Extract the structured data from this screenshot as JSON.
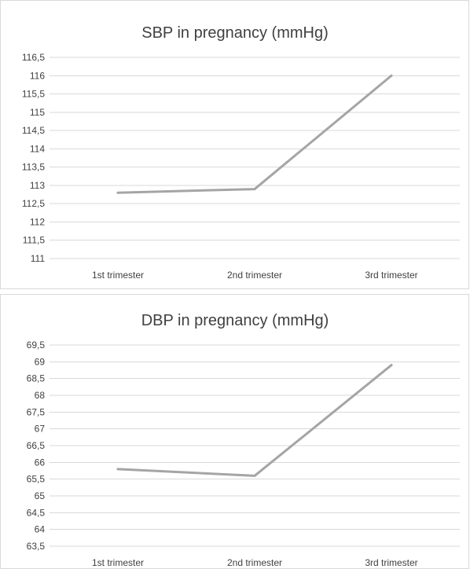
{
  "chart_data": [
    {
      "type": "line",
      "title": "SBP in pregnancy (mmHg)",
      "xlabel": "",
      "ylabel": "",
      "categories": [
        "1st trimester",
        "2nd trimester",
        "3rd trimester"
      ],
      "series": [
        {
          "values": [
            112.8,
            112.9,
            116.0
          ]
        }
      ],
      "ylim": [
        111,
        116.5
      ],
      "yticks": [
        "116,5",
        "116",
        "115,5",
        "115",
        "114,5",
        "114",
        "113,5",
        "113",
        "112,5",
        "112",
        "111,5",
        "111"
      ],
      "grid": true,
      "line_color": "#a5a5a5"
    },
    {
      "type": "line",
      "title": "DBP in pregnancy (mmHg)",
      "xlabel": "",
      "ylabel": "",
      "categories": [
        "1st trimester",
        "2nd trimester",
        "3rd trimester"
      ],
      "series": [
        {
          "values": [
            65.8,
            65.6,
            68.9
          ]
        }
      ],
      "ylim": [
        63.5,
        69.5
      ],
      "yticks": [
        "69,5",
        "69",
        "68,5",
        "68",
        "67,5",
        "67",
        "66,5",
        "66",
        "65,5",
        "65",
        "64,5",
        "64",
        "63,5"
      ],
      "grid": true,
      "line_color": "#a5a5a5"
    }
  ]
}
